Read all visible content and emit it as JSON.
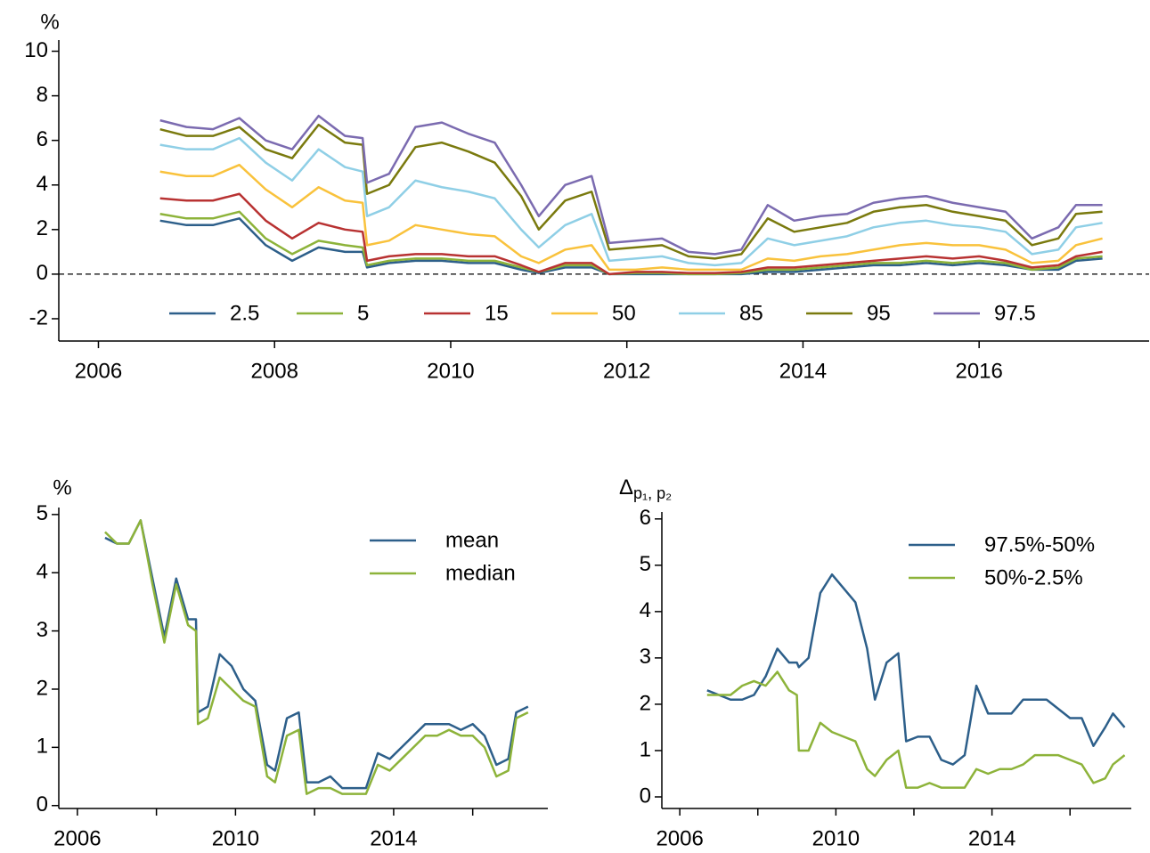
{
  "chart_data": [
    {
      "type": "line",
      "ylabel": "%",
      "hline": 0,
      "legend": "bottom",
      "x": [
        2006.7,
        2007.0,
        2007.3,
        2007.6,
        2007.9,
        2008.2,
        2008.5,
        2008.8,
        2009.0,
        2009.05,
        2009.3,
        2009.6,
        2009.9,
        2010.2,
        2010.5,
        2010.8,
        2011.0,
        2011.3,
        2011.6,
        2011.8,
        2012.1,
        2012.4,
        2012.7,
        2013.0,
        2013.3,
        2013.6,
        2013.9,
        2014.2,
        2014.5,
        2014.8,
        2015.1,
        2015.4,
        2015.7,
        2016.0,
        2016.3,
        2016.6,
        2016.9,
        2017.1,
        2017.4
      ],
      "xlim": [
        2005.55,
        2017.93
      ],
      "xticks": [
        2006,
        2008,
        2010,
        2012,
        2014,
        2016
      ],
      "ylim": [
        -3,
        10.5
      ],
      "yticks": [
        -2,
        0,
        2,
        4,
        6,
        8,
        10
      ],
      "series": [
        {
          "name": "2.5",
          "color": "#2d5f8a",
          "values": [
            2.4,
            2.2,
            2.2,
            2.5,
            1.3,
            0.6,
            1.2,
            1.0,
            1.0,
            0.3,
            0.5,
            0.6,
            0.6,
            0.5,
            0.5,
            0.2,
            0.05,
            0.3,
            0.3,
            0,
            0,
            0,
            0,
            0,
            0,
            0.1,
            0.1,
            0.2,
            0.3,
            0.4,
            0.4,
            0.5,
            0.4,
            0.5,
            0.4,
            0.2,
            0.2,
            0.6,
            0.7
          ]
        },
        {
          "name": "5",
          "color": "#8db33a",
          "values": [
            2.7,
            2.5,
            2.5,
            2.8,
            1.6,
            0.9,
            1.5,
            1.3,
            1.2,
            0.4,
            0.6,
            0.7,
            0.7,
            0.6,
            0.6,
            0.3,
            0.1,
            0.4,
            0.4,
            0,
            0.05,
            0.05,
            0,
            0,
            0.05,
            0.2,
            0.2,
            0.3,
            0.4,
            0.5,
            0.5,
            0.6,
            0.5,
            0.6,
            0.5,
            0.2,
            0.3,
            0.7,
            0.8
          ]
        },
        {
          "name": "15",
          "color": "#b83232",
          "values": [
            3.4,
            3.3,
            3.3,
            3.6,
            2.4,
            1.6,
            2.3,
            2.0,
            1.9,
            0.6,
            0.8,
            0.9,
            0.9,
            0.8,
            0.8,
            0.4,
            0.1,
            0.5,
            0.5,
            0,
            0.1,
            0.1,
            0.05,
            0.05,
            0.1,
            0.3,
            0.3,
            0.4,
            0.5,
            0.6,
            0.7,
            0.8,
            0.7,
            0.8,
            0.6,
            0.3,
            0.4,
            0.8,
            1.0
          ]
        },
        {
          "name": "50",
          "color": "#f9c23c",
          "values": [
            4.6,
            4.4,
            4.4,
            4.9,
            3.8,
            3.0,
            3.9,
            3.3,
            3.2,
            1.3,
            1.5,
            2.2,
            2.0,
            1.8,
            1.7,
            0.8,
            0.5,
            1.1,
            1.3,
            0.2,
            0.2,
            0.3,
            0.2,
            0.2,
            0.2,
            0.7,
            0.6,
            0.8,
            0.9,
            1.1,
            1.3,
            1.4,
            1.3,
            1.3,
            1.1,
            0.5,
            0.6,
            1.3,
            1.6
          ]
        },
        {
          "name": "85",
          "color": "#8fcfe6",
          "values": [
            5.8,
            5.6,
            5.6,
            6.1,
            5.0,
            4.2,
            5.6,
            4.8,
            4.6,
            2.6,
            3.0,
            4.2,
            3.9,
            3.7,
            3.4,
            2.0,
            1.2,
            2.2,
            2.7,
            0.6,
            0.7,
            0.8,
            0.5,
            0.4,
            0.5,
            1.6,
            1.3,
            1.5,
            1.7,
            2.1,
            2.3,
            2.4,
            2.2,
            2.1,
            1.9,
            0.9,
            1.1,
            2.1,
            2.3
          ]
        },
        {
          "name": "95",
          "color": "#7a7a0e",
          "values": [
            6.5,
            6.2,
            6.2,
            6.6,
            5.6,
            5.2,
            6.7,
            5.9,
            5.8,
            3.6,
            4.0,
            5.7,
            5.9,
            5.5,
            5.0,
            3.5,
            2.0,
            3.3,
            3.7,
            1.1,
            1.2,
            1.3,
            0.8,
            0.7,
            0.9,
            2.5,
            1.9,
            2.1,
            2.3,
            2.8,
            3.0,
            3.1,
            2.8,
            2.6,
            2.4,
            1.3,
            1.6,
            2.7,
            2.8
          ]
        },
        {
          "name": "97.5",
          "color": "#7b6bb0",
          "values": [
            6.9,
            6.6,
            6.5,
            7.0,
            6.0,
            5.6,
            7.1,
            6.2,
            6.1,
            4.1,
            4.5,
            6.6,
            6.8,
            6.3,
            5.9,
            4.0,
            2.6,
            4.0,
            4.4,
            1.4,
            1.5,
            1.6,
            1.0,
            0.9,
            1.1,
            3.1,
            2.4,
            2.6,
            2.7,
            3.2,
            3.4,
            3.5,
            3.2,
            3.0,
            2.8,
            1.6,
            2.1,
            3.1,
            3.1
          ]
        }
      ]
    },
    {
      "type": "line",
      "ylabel": "%",
      "legend": "upper right",
      "x": [
        2006.7,
        2007.0,
        2007.3,
        2007.6,
        2007.9,
        2008.2,
        2008.5,
        2008.8,
        2009.0,
        2009.05,
        2009.3,
        2009.6,
        2009.9,
        2010.2,
        2010.5,
        2010.8,
        2011.0,
        2011.3,
        2011.6,
        2011.8,
        2012.1,
        2012.4,
        2012.7,
        2013.0,
        2013.3,
        2013.6,
        2013.9,
        2014.2,
        2014.5,
        2014.8,
        2015.1,
        2015.4,
        2015.7,
        2016.0,
        2016.3,
        2016.6,
        2016.9,
        2017.1,
        2017.4
      ],
      "xlim": [
        2005.53,
        2017.9
      ],
      "xticks": [
        2006,
        2010,
        2014
      ],
      "xminorticks": [
        2008,
        2012,
        2016
      ],
      "ylim": [
        -0.05,
        5.12
      ],
      "yticks": [
        0,
        1,
        2,
        3,
        4,
        5
      ],
      "series": [
        {
          "name": "mean",
          "color": "#2d5f8a",
          "values": [
            4.6,
            4.5,
            4.5,
            4.9,
            3.9,
            2.9,
            3.9,
            3.2,
            3.2,
            1.6,
            1.7,
            2.6,
            2.4,
            2.0,
            1.8,
            0.7,
            0.6,
            1.5,
            1.6,
            0.4,
            0.4,
            0.5,
            0.3,
            0.3,
            0.3,
            0.9,
            0.8,
            1.0,
            1.2,
            1.4,
            1.4,
            1.4,
            1.3,
            1.4,
            1.2,
            0.7,
            0.8,
            1.6,
            1.7
          ]
        },
        {
          "name": "median",
          "color": "#8db33a",
          "values": [
            4.7,
            4.5,
            4.5,
            4.9,
            3.8,
            2.8,
            3.8,
            3.1,
            3.0,
            1.4,
            1.5,
            2.2,
            2.0,
            1.8,
            1.7,
            0.5,
            0.4,
            1.2,
            1.3,
            0.2,
            0.3,
            0.3,
            0.2,
            0.2,
            0.2,
            0.7,
            0.6,
            0.8,
            1.0,
            1.2,
            1.2,
            1.3,
            1.2,
            1.2,
            1.0,
            0.5,
            0.6,
            1.5,
            1.6
          ]
        }
      ]
    },
    {
      "type": "line",
      "ylabel": "Δ",
      "ylabel_subscript": "p₁, p₂",
      "legend": "upper right",
      "x": [
        2006.7,
        2007.0,
        2007.3,
        2007.6,
        2007.9,
        2008.2,
        2008.5,
        2008.8,
        2009.0,
        2009.05,
        2009.3,
        2009.6,
        2009.9,
        2010.2,
        2010.5,
        2010.8,
        2011.0,
        2011.3,
        2011.6,
        2011.8,
        2012.1,
        2012.4,
        2012.7,
        2013.0,
        2013.3,
        2013.6,
        2013.9,
        2014.2,
        2014.5,
        2014.8,
        2015.1,
        2015.4,
        2015.7,
        2016.0,
        2016.3,
        2016.6,
        2016.9,
        2017.1,
        2017.4
      ],
      "xlim": [
        2005.54,
        2017.57
      ],
      "xticks": [
        2006,
        2010,
        2014
      ],
      "xminorticks": [
        2008,
        2012,
        2016
      ],
      "ylim": [
        -0.25,
        6.15
      ],
      "yticks": [
        0,
        1,
        2,
        3,
        4,
        5,
        6
      ],
      "series": [
        {
          "name": "97.5%-50%",
          "color": "#2d5f8a",
          "values": [
            2.3,
            2.2,
            2.1,
            2.1,
            2.2,
            2.6,
            3.2,
            2.9,
            2.9,
            2.8,
            3.0,
            4.4,
            4.8,
            4.5,
            4.2,
            3.2,
            2.1,
            2.9,
            3.1,
            1.2,
            1.3,
            1.3,
            0.8,
            0.7,
            0.9,
            2.4,
            1.8,
            1.8,
            1.8,
            2.1,
            2.1,
            2.1,
            1.9,
            1.7,
            1.7,
            1.1,
            1.5,
            1.8,
            1.5
          ]
        },
        {
          "name": "50%-2.5%",
          "color": "#8db33a",
          "values": [
            2.2,
            2.2,
            2.2,
            2.4,
            2.5,
            2.4,
            2.7,
            2.3,
            2.2,
            1.0,
            1.0,
            1.6,
            1.4,
            1.3,
            1.2,
            0.6,
            0.45,
            0.8,
            1.0,
            0.2,
            0.2,
            0.3,
            0.2,
            0.2,
            0.2,
            0.6,
            0.5,
            0.6,
            0.6,
            0.7,
            0.9,
            0.9,
            0.9,
            0.8,
            0.7,
            0.3,
            0.4,
            0.7,
            0.9
          ]
        }
      ]
    }
  ]
}
